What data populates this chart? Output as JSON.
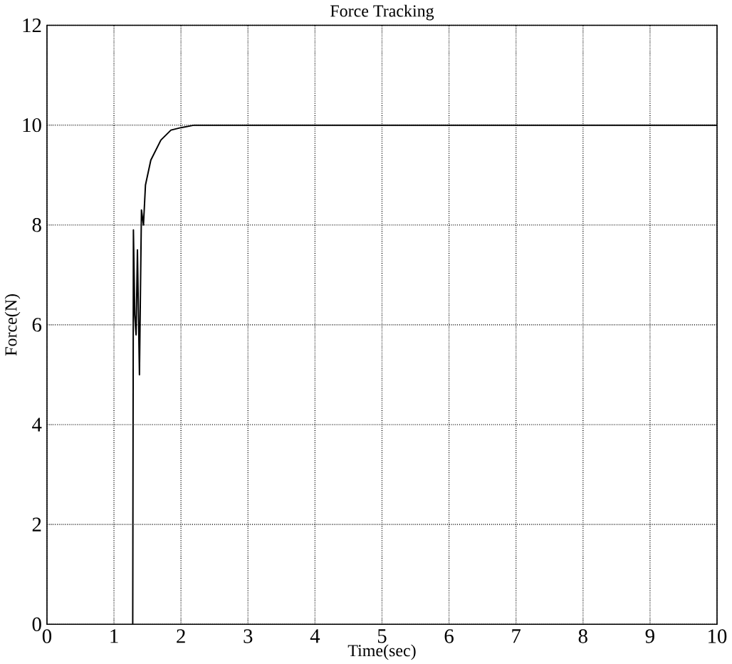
{
  "chart_data": {
    "type": "line",
    "title": "Force Tracking",
    "xlabel": "Time(sec)",
    "ylabel": "Force(N)",
    "x": [
      1.28,
      1.29,
      1.31,
      1.33,
      1.35,
      1.38,
      1.41,
      1.44,
      1.47,
      1.55,
      1.7,
      1.85,
      2.0,
      2.2,
      10
    ],
    "series": [
      {
        "color": "#000000",
        "values": [
          0,
          7.9,
          6.2,
          5.8,
          7.5,
          5.0,
          8.3,
          8.0,
          8.8,
          9.3,
          9.7,
          9.9,
          9.95,
          10,
          10
        ]
      }
    ],
    "xlim": [
      0,
      10
    ],
    "ylim": [
      0,
      12
    ],
    "xticks": [
      0,
      1,
      2,
      3,
      4,
      5,
      6,
      7,
      8,
      9,
      10
    ],
    "yticks": [
      0,
      2,
      4,
      6,
      8,
      10,
      12
    ],
    "grid": true,
    "line_style": "solid",
    "marker": "none"
  }
}
